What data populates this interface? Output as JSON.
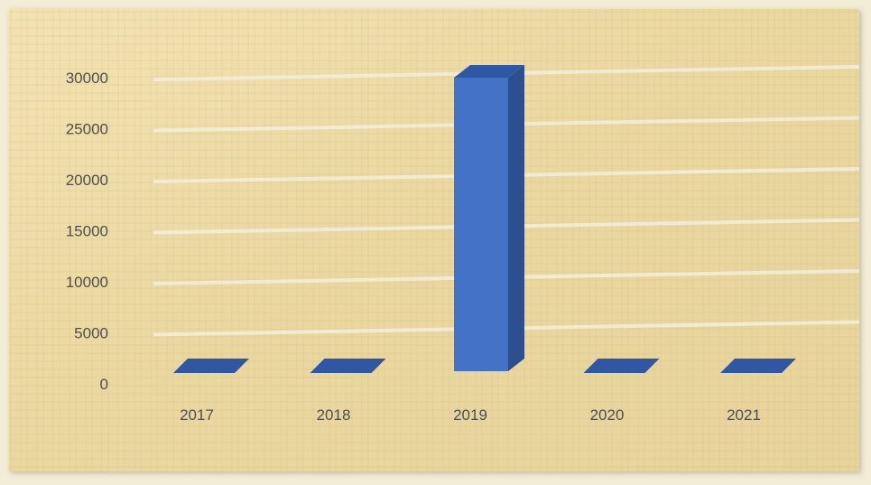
{
  "chart_data": {
    "type": "bar",
    "title": "",
    "xlabel": "",
    "ylabel": "",
    "categories": [
      "2017",
      "2018",
      "2019",
      "2020",
      "2021"
    ],
    "values": [
      0,
      0,
      30000,
      0,
      0
    ],
    "ylim": [
      0,
      30000
    ],
    "yticks": [
      "0",
      "5000",
      "10000",
      "15000",
      "20000",
      "25000",
      "30000"
    ],
    "grid": true,
    "legend": "none",
    "bar_style": "3d",
    "colors": {
      "bar_front": "#4472c4",
      "bar_side": "#2c4f8f",
      "bar_top": "#2f57a3",
      "background": "#eedfae",
      "gridline": "#f3eedf",
      "tick_text": "#4f4f4f"
    }
  }
}
